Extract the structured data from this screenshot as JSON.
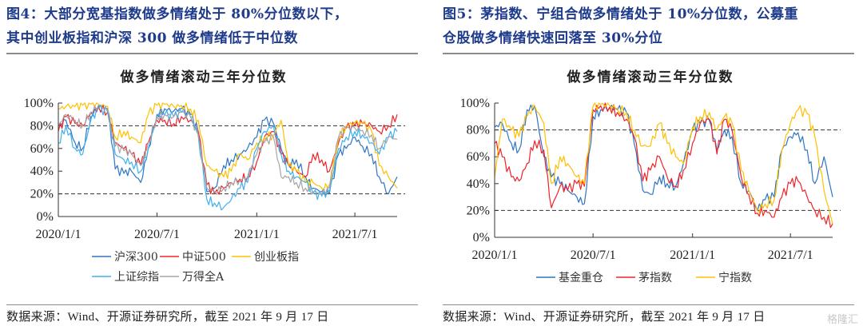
{
  "left": {
    "fig_title_line1": "图4：大部分宽基指数做多情绪处于 80%分位数以下，",
    "fig_title_line2": "其中创业板指和沪深 300 做多情绪低于中位数",
    "source": "数据来源：Wind、开源证券研究所，截至 2021 年 9 月 17 日"
  },
  "right": {
    "fig_title_line1": "图5：茅指数、宁组合做多情绪处于 10%分位数，公募重",
    "fig_title_line2": "仓股做多情绪快速回落至 30%分位",
    "source": "数据来源：Wind、开源证券研究所，截至 2021 年 9 月 17 日"
  },
  "watermark": "格隆汇",
  "chart_data": [
    {
      "type": "line",
      "title": "做多情绪滚动三年分位数",
      "xlabel": "",
      "ylabel": "",
      "ylim": [
        0,
        100
      ],
      "y_ticks": [
        "0%",
        "20%",
        "40%",
        "60%",
        "80%",
        "100%"
      ],
      "x_ticks": [
        "2020/1/1",
        "2020/7/1",
        "2021/1/1",
        "2021/7/1"
      ],
      "x_range": [
        "2020/1/1",
        "2021/9/17"
      ],
      "reference_lines": [
        80,
        20
      ],
      "legend_position": "bottom",
      "x": [
        "2020-01-01",
        "2020-01-15",
        "2020-02-01",
        "2020-02-15",
        "2020-03-01",
        "2020-03-15",
        "2020-04-01",
        "2020-04-15",
        "2020-05-01",
        "2020-05-15",
        "2020-06-01",
        "2020-06-15",
        "2020-07-01",
        "2020-07-15",
        "2020-08-01",
        "2020-08-15",
        "2020-09-01",
        "2020-09-15",
        "2020-10-01",
        "2020-10-15",
        "2020-11-01",
        "2020-11-15",
        "2020-12-01",
        "2020-12-15",
        "2021-01-01",
        "2021-01-15",
        "2021-02-01",
        "2021-02-15",
        "2021-03-01",
        "2021-03-15",
        "2021-04-01",
        "2021-04-15",
        "2021-05-01",
        "2021-05-15",
        "2021-06-01",
        "2021-06-15",
        "2021-07-01",
        "2021-07-15",
        "2021-08-01",
        "2021-08-15",
        "2021-09-01",
        "2021-09-17"
      ],
      "series": [
        {
          "name": "沪深300",
          "color": "#2e75c3",
          "values": [
            80,
            85,
            65,
            60,
            88,
            97,
            95,
            42,
            38,
            40,
            30,
            60,
            90,
            95,
            93,
            95,
            90,
            75,
            22,
            25,
            45,
            50,
            55,
            60,
            70,
            85,
            82,
            60,
            45,
            50,
            35,
            25,
            22,
            20,
            55,
            60,
            70,
            62,
            55,
            35,
            20,
            35
          ]
        },
        {
          "name": "中证500",
          "color": "#f0232a",
          "values": [
            75,
            88,
            82,
            80,
            92,
            97,
            92,
            65,
            60,
            55,
            45,
            65,
            85,
            85,
            82,
            88,
            85,
            75,
            28,
            20,
            25,
            30,
            33,
            35,
            48,
            70,
            75,
            55,
            45,
            40,
            35,
            55,
            50,
            40,
            65,
            78,
            80,
            82,
            80,
            75,
            80,
            90
          ]
        },
        {
          "name": "创业板指",
          "color": "#ffc000",
          "values": [
            95,
            97,
            97,
            98,
            99,
            99,
            97,
            70,
            75,
            70,
            65,
            90,
            98,
            99,
            97,
            98,
            95,
            85,
            45,
            40,
            35,
            40,
            55,
            50,
            65,
            70,
            72,
            85,
            45,
            40,
            30,
            30,
            25,
            28,
            70,
            80,
            83,
            82,
            75,
            45,
            35,
            25
          ]
        },
        {
          "name": "上证综指",
          "color": "#3fb0f0",
          "values": [
            65,
            80,
            60,
            55,
            85,
            95,
            92,
            55,
            50,
            48,
            40,
            60,
            88,
            90,
            88,
            92,
            88,
            72,
            15,
            12,
            8,
            15,
            25,
            30,
            60,
            75,
            80,
            55,
            40,
            35,
            30,
            20,
            18,
            22,
            60,
            70,
            75,
            72,
            65,
            55,
            70,
            75
          ]
        },
        {
          "name": "万得全A",
          "color": "#a5a5a5",
          "values": [
            80,
            90,
            85,
            80,
            92,
            98,
            94,
            62,
            58,
            55,
            45,
            65,
            88,
            90,
            88,
            92,
            88,
            72,
            25,
            22,
            25,
            30,
            32,
            35,
            55,
            65,
            70,
            35,
            35,
            30,
            25,
            22,
            20,
            25,
            70,
            78,
            78,
            76,
            72,
            60,
            70,
            68
          ]
        }
      ]
    },
    {
      "type": "line",
      "title": "做多情绪滚动三年分位数",
      "xlabel": "",
      "ylabel": "",
      "ylim": [
        0,
        100
      ],
      "y_ticks": [
        "0%",
        "20%",
        "40%",
        "60%",
        "80%",
        "100%"
      ],
      "x_ticks": [
        "2020/1/1",
        "2020/7/1",
        "2021/1/1",
        "2021/7/1"
      ],
      "x_range": [
        "2020/1/1",
        "2021/9/17"
      ],
      "reference_lines": [
        80,
        20
      ],
      "legend_position": "bottom",
      "x": [
        "2020-01-01",
        "2020-01-15",
        "2020-02-01",
        "2020-02-15",
        "2020-03-01",
        "2020-03-15",
        "2020-04-01",
        "2020-04-15",
        "2020-05-01",
        "2020-05-15",
        "2020-06-01",
        "2020-06-15",
        "2020-07-01",
        "2020-07-15",
        "2020-08-01",
        "2020-08-15",
        "2020-09-01",
        "2020-09-15",
        "2020-10-01",
        "2020-10-15",
        "2020-11-01",
        "2020-11-15",
        "2020-12-01",
        "2020-12-15",
        "2021-01-01",
        "2021-01-15",
        "2021-02-01",
        "2021-02-15",
        "2021-03-01",
        "2021-03-15",
        "2021-04-01",
        "2021-04-15",
        "2021-05-01",
        "2021-05-15",
        "2021-06-01",
        "2021-06-15",
        "2021-07-01",
        "2021-07-15",
        "2021-08-01",
        "2021-08-15",
        "2021-09-01",
        "2021-09-17"
      ],
      "series": [
        {
          "name": "基金重仓",
          "color": "#2e75c3",
          "values": [
            82,
            85,
            70,
            65,
            95,
            98,
            60,
            45,
            40,
            35,
            30,
            25,
            90,
            95,
            97,
            95,
            93,
            70,
            35,
            32,
            45,
            40,
            38,
            55,
            80,
            85,
            87,
            65,
            80,
            75,
            40,
            35,
            20,
            28,
            30,
            65,
            75,
            78,
            65,
            40,
            60,
            30
          ]
        },
        {
          "name": "茅指数",
          "color": "#f0232a",
          "values": [
            70,
            60,
            45,
            42,
            55,
            72,
            65,
            22,
            38,
            35,
            40,
            38,
            95,
            98,
            97,
            93,
            88,
            75,
            42,
            50,
            60,
            45,
            38,
            50,
            70,
            85,
            88,
            62,
            88,
            80,
            45,
            32,
            18,
            20,
            15,
            30,
            40,
            42,
            30,
            20,
            15,
            10
          ]
        },
        {
          "name": "宁指数",
          "color": "#ffc000",
          "values": [
            45,
            88,
            80,
            75,
            90,
            98,
            85,
            40,
            60,
            55,
            45,
            40,
            98,
            99,
            98,
            96,
            93,
            80,
            68,
            68,
            85,
            70,
            60,
            55,
            82,
            90,
            93,
            80,
            90,
            85,
            50,
            35,
            20,
            25,
            28,
            65,
            85,
            95,
            92,
            75,
            35,
            10
          ]
        }
      ]
    }
  ]
}
